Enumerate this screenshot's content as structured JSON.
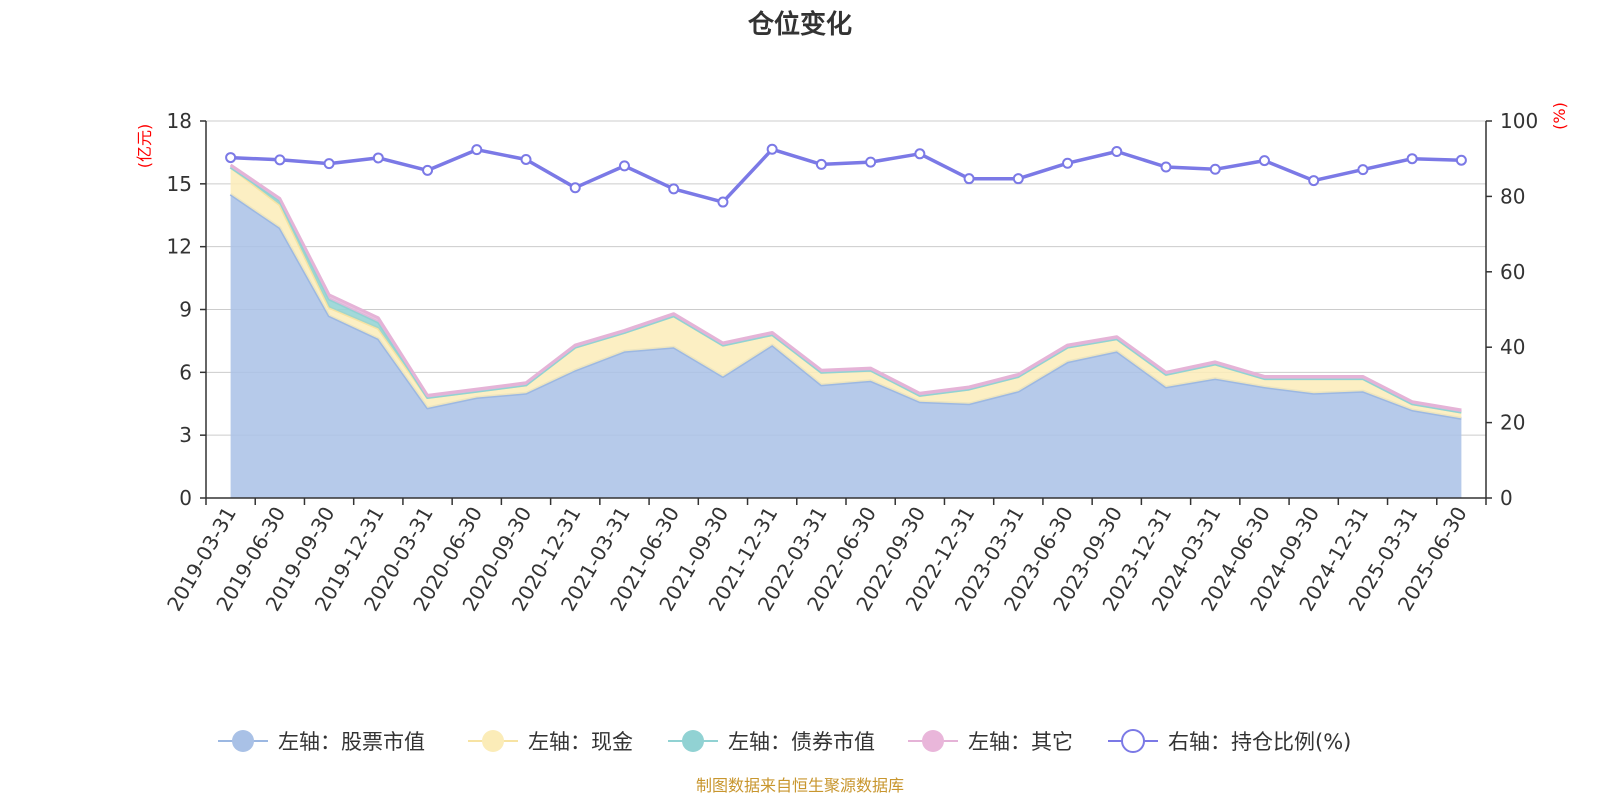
{
  "chart_data": {
    "type": "area",
    "title": "仓位变化",
    "left_axis": {
      "unit": "(亿元)",
      "ylim": [
        0,
        18
      ],
      "ticks": [
        "0",
        "3",
        "6",
        "9",
        "12",
        "15",
        "18"
      ]
    },
    "right_axis": {
      "unit": "(%)",
      "ylim": [
        0,
        100
      ],
      "ticks": [
        "0",
        "20",
        "40",
        "60",
        "80",
        "100"
      ]
    },
    "grid": true,
    "legend_position": "bottom",
    "categories": [
      "2019-03-31",
      "2019-06-30",
      "2019-09-30",
      "2019-12-31",
      "2020-03-31",
      "2020-06-30",
      "2020-09-30",
      "2020-12-31",
      "2021-03-31",
      "2021-06-30",
      "2021-09-30",
      "2021-12-31",
      "2022-03-31",
      "2022-06-30",
      "2022-09-30",
      "2022-12-31",
      "2023-03-31",
      "2023-06-30",
      "2023-09-30",
      "2023-12-31",
      "2024-03-31",
      "2024-06-30",
      "2024-09-30",
      "2024-12-31",
      "2025-03-31",
      "2025-06-30"
    ],
    "series": [
      {
        "name": "左轴：股票市值",
        "axis": "left",
        "color": "#a9c1e6",
        "line_color": "#9cb8e2",
        "values": [
          14.5,
          12.9,
          8.7,
          7.6,
          4.3,
          4.8,
          5.0,
          6.1,
          7.0,
          7.2,
          5.8,
          7.3,
          5.4,
          5.6,
          4.6,
          4.5,
          5.1,
          6.5,
          7.0,
          5.3,
          5.7,
          5.3,
          5.0,
          5.1,
          4.2,
          3.8
        ]
      },
      {
        "name": "左轴：现金",
        "axis": "left",
        "color": "#fbecb8",
        "line_color": "#f7e3a3",
        "values": [
          1.3,
          1.1,
          0.4,
          0.5,
          0.5,
          0.3,
          0.4,
          1.1,
          0.9,
          1.5,
          1.5,
          0.5,
          0.6,
          0.5,
          0.3,
          0.7,
          0.7,
          0.7,
          0.6,
          0.6,
          0.7,
          0.4,
          0.7,
          0.6,
          0.3,
          0.3
        ]
      },
      {
        "name": "左轴：债券市值",
        "axis": "left",
        "color": "#91d2d3",
        "line_color": "#91d2d3",
        "values": [
          0.0,
          0.2,
          0.4,
          0.3,
          0.0,
          0.0,
          0.0,
          0.0,
          0.0,
          0.0,
          0.0,
          0.0,
          0.0,
          0.0,
          0.0,
          0.0,
          0.0,
          0.0,
          0.0,
          0.0,
          0.0,
          0.0,
          0.0,
          0.0,
          0.0,
          0.0
        ]
      },
      {
        "name": "左轴：其它",
        "axis": "left",
        "color": "#e9b6da",
        "line_color": "#e5b3d7",
        "values": [
          0.1,
          0.1,
          0.2,
          0.2,
          0.1,
          0.1,
          0.1,
          0.1,
          0.1,
          0.1,
          0.1,
          0.1,
          0.1,
          0.1,
          0.1,
          0.1,
          0.1,
          0.1,
          0.1,
          0.1,
          0.1,
          0.1,
          0.1,
          0.1,
          0.1,
          0.1
        ]
      },
      {
        "name": "右轴：持仓比例(%)",
        "axis": "right",
        "type": "line",
        "color": "#7b79e6",
        "values": [
          90.3,
          89.7,
          88.7,
          90.2,
          86.9,
          92.4,
          89.8,
          82.3,
          88.1,
          82.0,
          78.5,
          92.5,
          88.5,
          89.1,
          91.3,
          84.7,
          84.7,
          88.8,
          91.9,
          87.8,
          87.2,
          89.5,
          84.2,
          87.1,
          90.0,
          89.6
        ]
      }
    ],
    "source": "制图数据来自恒生聚源数据库"
  }
}
